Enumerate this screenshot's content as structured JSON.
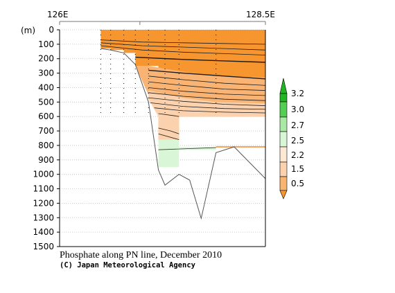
{
  "chart_data": {
    "type": "contour-section",
    "title": "Phosphate along PN line, December 2010",
    "credit": "(C) Japan Meteorological Agency",
    "x_axis": {
      "range": [
        126,
        128.5
      ],
      "ticks": [
        {
          "value": 126,
          "label": "126E"
        },
        {
          "value": 128.5,
          "label": "128.5E"
        }
      ]
    },
    "y_axis": {
      "unit_label": "(m)",
      "range": [
        0,
        1500
      ],
      "reversed": true,
      "ticks": [
        0,
        100,
        200,
        300,
        400,
        500,
        600,
        700,
        800,
        900,
        1000,
        1100,
        1200,
        1300,
        1400,
        1500
      ],
      "tick_labels": [
        "0",
        "100",
        "200",
        "300",
        "400",
        "500",
        "600",
        "700",
        "800",
        "900",
        "1000",
        "1100",
        "1200",
        "1300",
        "1400",
        "1500"
      ]
    },
    "colorbar": {
      "levels": [
        "0.5",
        "1.5",
        "2.2",
        "2.5",
        "2.7",
        "3.0",
        "3.2"
      ],
      "colors": [
        "#f7952f",
        "#f9b474",
        "#fbd2ad",
        "#fde8d4",
        "#ffffff",
        "#d9f7d6",
        "#a8eaa4",
        "#52cf52",
        "#22b522"
      ]
    },
    "station_longitudes": [
      126.5,
      126.62,
      126.78,
      126.92,
      127.08,
      127.28,
      127.45,
      127.9,
      128.5
    ],
    "bottom_profile": [
      {
        "lon": 126.5,
        "depth": 130
      },
      {
        "lon": 126.62,
        "depth": 140
      },
      {
        "lon": 126.78,
        "depth": 160
      },
      {
        "lon": 126.92,
        "depth": 240
      },
      {
        "lon": 127.08,
        "depth": 500
      },
      {
        "lon": 127.2,
        "depth": 970
      },
      {
        "lon": 127.28,
        "depth": 1075
      },
      {
        "lon": 127.45,
        "depth": 1000
      },
      {
        "lon": 127.58,
        "depth": 1040
      },
      {
        "lon": 127.72,
        "depth": 1305
      },
      {
        "lon": 127.9,
        "depth": 850
      },
      {
        "lon": 128.12,
        "depth": 810
      },
      {
        "lon": 128.5,
        "depth": 1030
      }
    ],
    "filled_regions": [
      {
        "value_range": "0.5 and below",
        "lon_range": [
          126.5,
          128.5
        ],
        "depth_top": 0,
        "depth_bottom": 250
      },
      {
        "value_range": "0.5-1.5",
        "lon_range": [
          126.92,
          128.5
        ],
        "depth_top": 250,
        "depth_bottom": 450
      },
      {
        "value_range": "1.5-2.2",
        "lon_range": [
          127.08,
          128.5
        ],
        "depth_top": 450,
        "depth_bottom": 600
      },
      {
        "value_range": "2.2-2.5",
        "lon_range": [
          127.2,
          127.45
        ],
        "depth_top": 600,
        "depth_bottom": 760
      },
      {
        "value_range": "2.7-3.0",
        "lon_range": [
          127.2,
          127.45
        ],
        "depth_top": 760,
        "depth_bottom": 950
      }
    ],
    "grid": true
  }
}
